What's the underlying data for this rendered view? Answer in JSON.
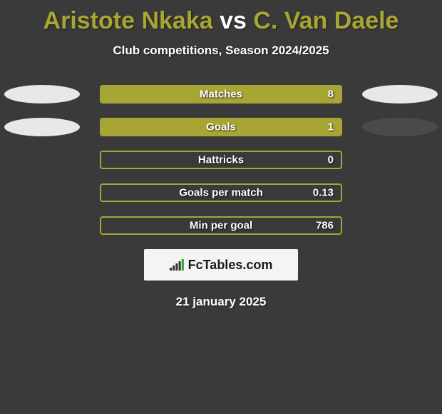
{
  "title": {
    "prefix": "Aristote Nkaka ",
    "mid": "vs",
    "suffix": " C. Van Daele",
    "color_name": "#a7a534",
    "color_vs": "#ffffff",
    "fontsize": 34
  },
  "subtitle": {
    "text": "Club competitions, Season 2024/2025",
    "color": "#ffffff",
    "fontsize": 17
  },
  "rows": [
    {
      "label": "Matches",
      "value": "8",
      "fill_pct": 100,
      "fill_color": "#a7a534",
      "border_color": "#a7a534",
      "left_ellipse": "#e8e8e8",
      "right_ellipse": "#e8e8e8"
    },
    {
      "label": "Goals",
      "value": "1",
      "fill_pct": 100,
      "fill_color": "#a7a534",
      "border_color": "#a7a534",
      "left_ellipse": "#e8e8e8",
      "right_ellipse": "#4a4a4a"
    },
    {
      "label": "Hattricks",
      "value": "0",
      "fill_pct": 0,
      "fill_color": "#a7a534",
      "border_color": "#a7a534",
      "left_ellipse": null,
      "right_ellipse": null
    },
    {
      "label": "Goals per match",
      "value": "0.13",
      "fill_pct": 0,
      "fill_color": "#a7a534",
      "border_color": "#a7a534",
      "left_ellipse": null,
      "right_ellipse": null
    },
    {
      "label": "Min per goal",
      "value": "786",
      "fill_pct": 0,
      "fill_color": "#a7a534",
      "border_color": "#a7a534",
      "left_ellipse": null,
      "right_ellipse": null
    }
  ],
  "logo": {
    "text": "FcTables.com",
    "background": "#f4f4f4",
    "text_color": "#1a1a1a",
    "bar_colors": [
      "#333333",
      "#333333",
      "#333333",
      "#333333",
      "#2aa02a"
    ]
  },
  "date": {
    "text": "21 january 2025",
    "color": "#ffffff",
    "fontsize": 17
  },
  "page_background": "#3a3a3a"
}
